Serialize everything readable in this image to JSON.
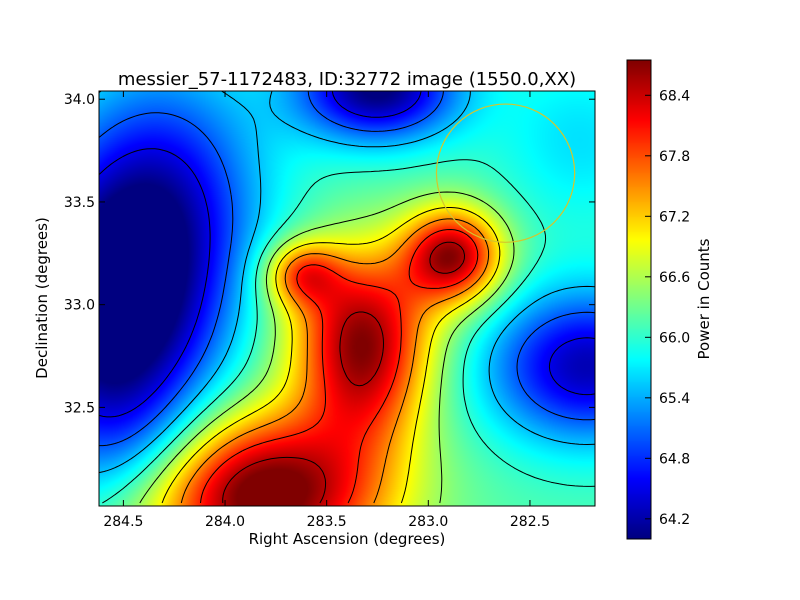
{
  "chart_data": {
    "type": "heatmap",
    "title": "messier_57-1172483, ID:32772 image (1550.0,XX)",
    "xlabel": "Right Ascension (degrees)",
    "ylabel": "Declination (degrees)",
    "colorbar_label": "Power in Counts",
    "colormap": "jet",
    "x_inverted": true,
    "xlim": [
      284.62,
      282.18
    ],
    "ylim": [
      32.02,
      34.04
    ],
    "clim": [
      64.0,
      68.75
    ],
    "x_ticks": [
      {
        "value": 284.5,
        "label": "284.5"
      },
      {
        "value": 284.0,
        "label": "284.0"
      },
      {
        "value": 283.5,
        "label": "283.5"
      },
      {
        "value": 283.0,
        "label": "283.0"
      },
      {
        "value": 282.5,
        "label": "282.5"
      }
    ],
    "y_ticks": [
      {
        "value": 32.5,
        "label": "32.5"
      },
      {
        "value": 33.0,
        "label": "33.0"
      },
      {
        "value": 33.5,
        "label": "33.5"
      },
      {
        "value": 34.0,
        "label": "34.0"
      }
    ],
    "colorbar_ticks": [
      {
        "value": 64.2,
        "label": "64.2"
      },
      {
        "value": 64.8,
        "label": "64.8"
      },
      {
        "value": 65.4,
        "label": "65.4"
      },
      {
        "value": 66.0,
        "label": "66.0"
      },
      {
        "value": 66.6,
        "label": "66.6"
      },
      {
        "value": 67.2,
        "label": "67.2"
      },
      {
        "value": 67.8,
        "label": "67.8"
      },
      {
        "value": 68.4,
        "label": "68.4"
      }
    ],
    "background": 66.15,
    "components": [
      {
        "ra": 283.82,
        "dec": 32.08,
        "amplitude": 2.9,
        "sigma_ra": 0.42,
        "sigma_dec": 0.28
      },
      {
        "ra": 283.32,
        "dec": 32.72,
        "amplitude": 2.0,
        "sigma_ra": 0.22,
        "sigma_dec": 0.3
      },
      {
        "ra": 282.88,
        "dec": 33.24,
        "amplitude": 2.4,
        "sigma_ra": 0.17,
        "sigma_dec": 0.16
      },
      {
        "ra": 283.62,
        "dec": 33.15,
        "amplitude": 1.4,
        "sigma_ra": 0.13,
        "sigma_dec": 0.11
      },
      {
        "ra": 283.35,
        "dec": 33.0,
        "amplitude": 0.9,
        "sigma_ra": 0.3,
        "sigma_dec": 0.25
      },
      {
        "ra": 284.55,
        "dec": 32.95,
        "amplitude": -2.4,
        "sigma_ra": 0.35,
        "sigma_dec": 0.45
      },
      {
        "ra": 284.3,
        "dec": 33.55,
        "amplitude": -1.4,
        "sigma_ra": 0.35,
        "sigma_dec": 0.45
      },
      {
        "ra": 283.25,
        "dec": 34.05,
        "amplitude": -2.2,
        "sigma_ra": 0.28,
        "sigma_dec": 0.18
      },
      {
        "ra": 282.22,
        "dec": 32.7,
        "amplitude": -1.9,
        "sigma_ra": 0.35,
        "sigma_dec": 0.26
      },
      {
        "ra": 282.25,
        "dec": 33.8,
        "amplitude": -0.5,
        "sigma_ra": 0.3,
        "sigma_dec": 0.3
      },
      {
        "ra": 284.45,
        "dec": 32.3,
        "amplitude": -0.7,
        "sigma_ra": 0.3,
        "sigma_dec": 0.25
      }
    ],
    "contour_levels": [
      64.5,
      65.0,
      65.5,
      66.0,
      66.5,
      67.0,
      67.5,
      68.0,
      68.5
    ],
    "grid": false,
    "legend": "none",
    "beam_circle": {
      "ra": 282.62,
      "dec": 33.64,
      "radius_deg": 0.34,
      "color": "#d4c62c"
    }
  }
}
